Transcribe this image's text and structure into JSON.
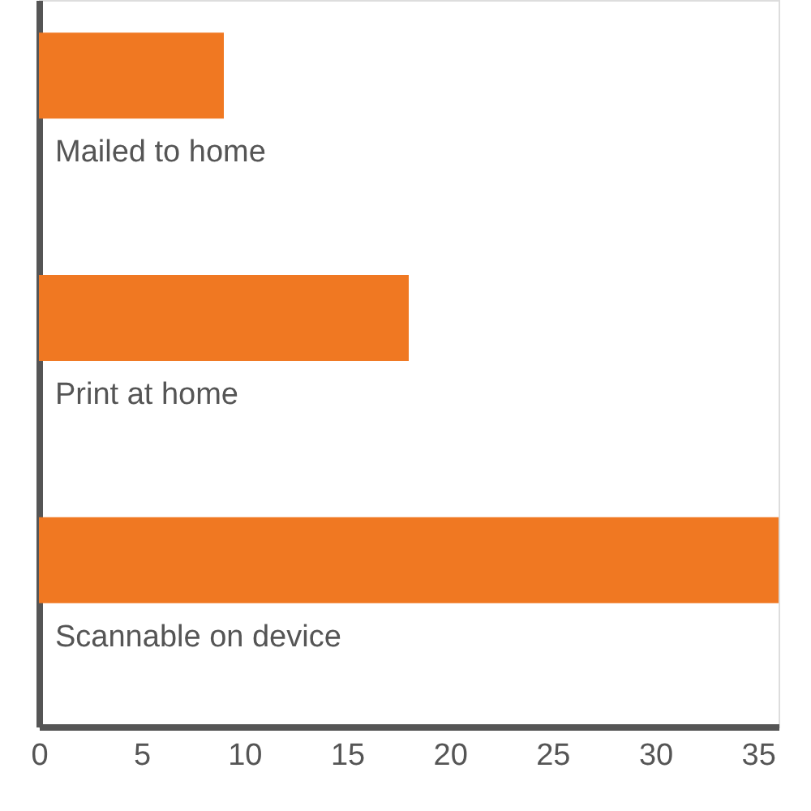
{
  "chart_data": {
    "type": "bar",
    "orientation": "horizontal",
    "categories": [
      "Mailed to home",
      "Print at home",
      "Scannable on device"
    ],
    "values": [
      9,
      18,
      36
    ],
    "color": "#f07822",
    "xlim": [
      0,
      36
    ],
    "xticks": [
      0,
      5,
      10,
      15,
      20,
      25,
      30,
      35
    ],
    "grid": false,
    "tick_labels": "x"
  }
}
